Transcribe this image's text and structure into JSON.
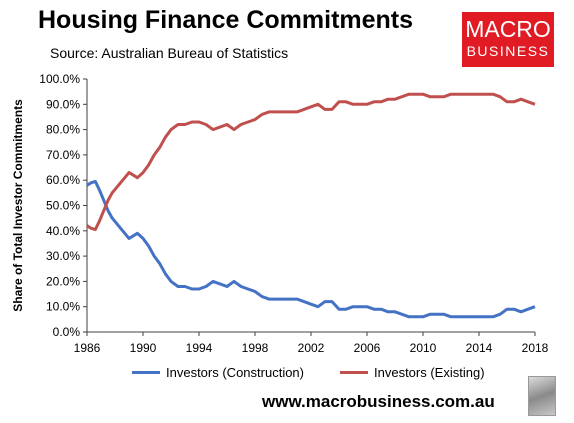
{
  "header": {
    "title": "Housing Finance Commitments",
    "subtitle": "Source: Australian Bureau of Statistics"
  },
  "logo": {
    "line1": "MACRO",
    "line2": "BUSINESS"
  },
  "footer": {
    "website": "www.macrobusiness.com.au"
  },
  "colors": {
    "construction": "#4472c4",
    "existing": "#c0504d",
    "axis": "#404040"
  },
  "icons": {
    "wolf": "wolf-logo-icon"
  },
  "chart_data": {
    "type": "line",
    "title": "Housing Finance Commitments",
    "xlabel": "",
    "ylabel": "Share of Total Investor Commitments",
    "xlim": [
      1986,
      2018
    ],
    "ylim": [
      0,
      100
    ],
    "xticks": [
      "1986",
      "1990",
      "1994",
      "1998",
      "2002",
      "2006",
      "2010",
      "2014",
      "2018"
    ],
    "yticks": [
      "0.0%",
      "10.0%",
      "20.0%",
      "30.0%",
      "40.0%",
      "50.0%",
      "60.0%",
      "70.0%",
      "80.0%",
      "90.0%",
      "100.0%"
    ],
    "grid": false,
    "legend_position": "bottom",
    "series": [
      {
        "name": "Investors (Construction)",
        "x": [
          1986.0,
          1986.3,
          1986.6,
          1986.9,
          1987.2,
          1987.5,
          1987.8,
          1988.1,
          1988.4,
          1988.7,
          1989.0,
          1989.3,
          1989.6,
          1990.0,
          1990.4,
          1990.8,
          1991.2,
          1991.6,
          1992.0,
          1992.5,
          1993.0,
          1993.5,
          1994.0,
          1994.5,
          1995.0,
          1995.5,
          1996.0,
          1996.5,
          1997.0,
          1997.5,
          1998.0,
          1998.5,
          1999.0,
          1999.5,
          2000.0,
          2000.5,
          2001.0,
          2001.5,
          2002.0,
          2002.5,
          2003.0,
          2003.5,
          2004.0,
          2004.5,
          2005.0,
          2005.5,
          2006.0,
          2006.5,
          2007.0,
          2007.5,
          2008.0,
          2008.5,
          2009.0,
          2009.5,
          2010.0,
          2010.5,
          2011.0,
          2011.5,
          2012.0,
          2012.5,
          2013.0,
          2013.5,
          2014.0,
          2014.5,
          2015.0,
          2015.5,
          2016.0,
          2016.5,
          2017.0,
          2017.5,
          2018.0
        ],
        "y": [
          58,
          59,
          59.5,
          56,
          52,
          48,
          45,
          43,
          41,
          39,
          37,
          38,
          39,
          37,
          34,
          30,
          27,
          23,
          20,
          18,
          18,
          17,
          17,
          18,
          20,
          19,
          18,
          20,
          18,
          17,
          16,
          14,
          13,
          13,
          13,
          13,
          13,
          12,
          11,
          10,
          12,
          12,
          9,
          9,
          10,
          10,
          10,
          9,
          9,
          8,
          8,
          7,
          6,
          6,
          6,
          7,
          7,
          7,
          6,
          6,
          6,
          6,
          6,
          6,
          6,
          7,
          9,
          9,
          8,
          9,
          10
        ]
      },
      {
        "name": "Investors (Existing)",
        "x": [
          1986.0,
          1986.3,
          1986.6,
          1986.9,
          1987.2,
          1987.5,
          1987.8,
          1988.1,
          1988.4,
          1988.7,
          1989.0,
          1989.3,
          1989.6,
          1990.0,
          1990.4,
          1990.8,
          1991.2,
          1991.6,
          1992.0,
          1992.5,
          1993.0,
          1993.5,
          1994.0,
          1994.5,
          1995.0,
          1995.5,
          1996.0,
          1996.5,
          1997.0,
          1997.5,
          1998.0,
          1998.5,
          1999.0,
          1999.5,
          2000.0,
          2000.5,
          2001.0,
          2001.5,
          2002.0,
          2002.5,
          2003.0,
          2003.5,
          2004.0,
          2004.5,
          2005.0,
          2005.5,
          2006.0,
          2006.5,
          2007.0,
          2007.5,
          2008.0,
          2008.5,
          2009.0,
          2009.5,
          2010.0,
          2010.5,
          2011.0,
          2011.5,
          2012.0,
          2012.5,
          2013.0,
          2013.5,
          2014.0,
          2014.5,
          2015.0,
          2015.5,
          2016.0,
          2016.5,
          2017.0,
          2017.5,
          2018.0
        ],
        "y": [
          42,
          41,
          40.5,
          44,
          48,
          52,
          55,
          57,
          59,
          61,
          63,
          62,
          61,
          63,
          66,
          70,
          73,
          77,
          80,
          82,
          82,
          83,
          83,
          82,
          80,
          81,
          82,
          80,
          82,
          83,
          84,
          86,
          87,
          87,
          87,
          87,
          87,
          88,
          89,
          90,
          88,
          88,
          91,
          91,
          90,
          90,
          90,
          91,
          91,
          92,
          92,
          93,
          94,
          94,
          94,
          93,
          93,
          93,
          94,
          94,
          94,
          94,
          94,
          94,
          94,
          93,
          91,
          91,
          92,
          91,
          90
        ]
      }
    ]
  }
}
